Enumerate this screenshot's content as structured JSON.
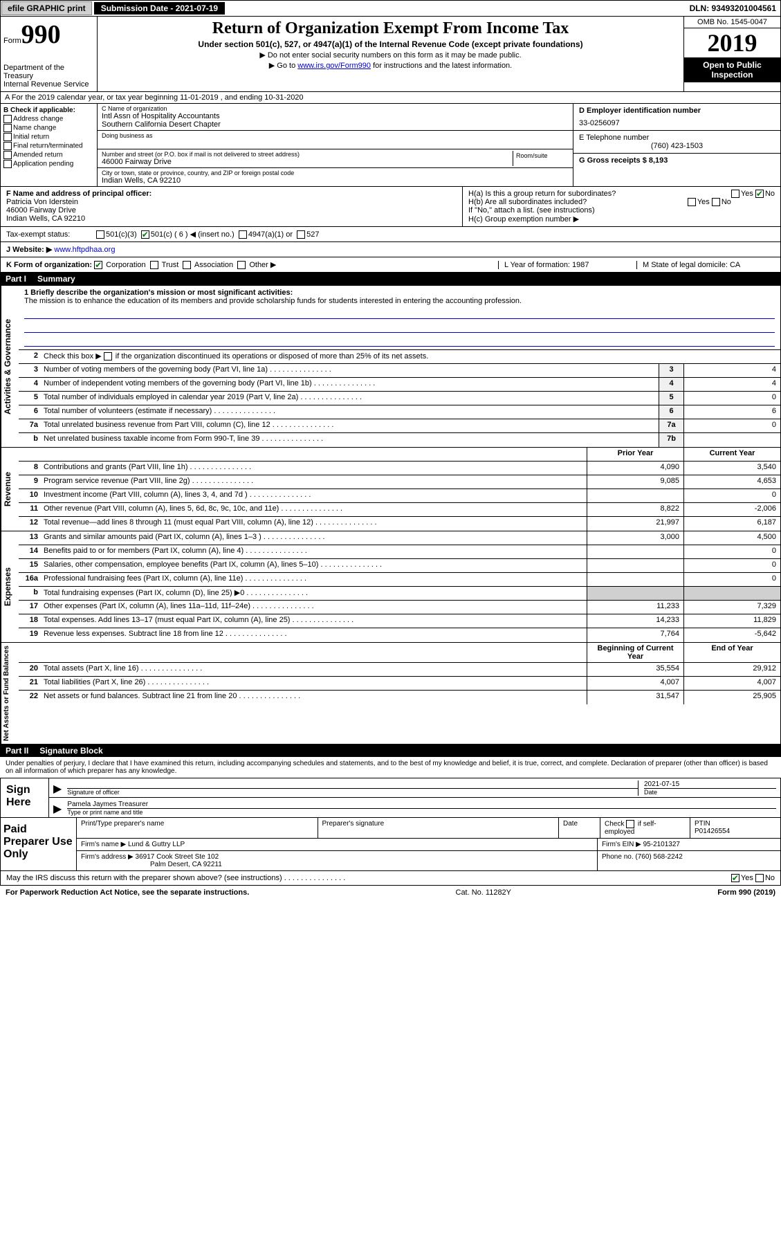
{
  "topbar": {
    "efile": "efile GRAPHIC print",
    "submission": "Submission Date - 2021-07-19",
    "dln": "DLN: 93493201004561"
  },
  "header": {
    "form_label": "Form",
    "form_num": "990",
    "dept": "Department of the Treasury\nInternal Revenue Service",
    "title": "Return of Organization Exempt From Income Tax",
    "sub": "Under section 501(c), 527, or 4947(a)(1) of the Internal Revenue Code (except private foundations)",
    "note1": "Do not enter social security numbers on this form as it may be made public.",
    "note2_pre": "Go to ",
    "note2_link": "www.irs.gov/Form990",
    "note2_post": " for instructions and the latest information.",
    "omb": "OMB No. 1545-0047",
    "year": "2019",
    "inspection": "Open to Public Inspection"
  },
  "sectionA": "A For the 2019 calendar year, or tax year beginning 11-01-2019    , and ending 10-31-2020",
  "colB": {
    "label": "B Check if applicable:",
    "addr_change": "Address change",
    "name_change": "Name change",
    "initial": "Initial return",
    "final": "Final return/terminated",
    "amended": "Amended return",
    "app_pending": "Application pending"
  },
  "colC": {
    "name_lbl": "C Name of organization",
    "name_val": "Intl Assn of Hospitality Accountants\nSouthern California Desert Chapter",
    "dba_lbl": "Doing business as",
    "addr_lbl": "Number and street (or P.O. box if mail is not delivered to street address)",
    "addr_val": "46000 Fairway Drive",
    "room_lbl": "Room/suite",
    "city_lbl": "City or town, state or province, country, and ZIP or foreign postal code",
    "city_val": "Indian Wells, CA  92210"
  },
  "colD": {
    "ein_lbl": "D Employer identification number",
    "ein_val": "33-0256097",
    "tel_lbl": "E Telephone number",
    "tel_val": "(760) 423-1503",
    "gross_lbl": "G Gross receipts $ 8,193"
  },
  "sectionF": {
    "lbl": "F  Name and address of principal officer:",
    "name": "Patricia Von Iderstein",
    "addr1": "46000 Fairway Drive",
    "addr2": "Indian Wells, CA  92210"
  },
  "sectionH": {
    "ha": "H(a)  Is this a group return for subordinates?",
    "hb": "H(b)  Are all subordinates included?",
    "hb_note": "If \"No,\" attach a list. (see instructions)",
    "hc": "H(c)  Group exemption number ▶",
    "yes": "Yes",
    "no": "No"
  },
  "taxExempt": {
    "label": "Tax-exempt status:",
    "c3": "501(c)(3)",
    "c": "501(c) ( 6 ) ◀ (insert no.)",
    "a1": "4947(a)(1) or",
    "s527": "527"
  },
  "website": {
    "label": "J   Website: ▶",
    "val": "www.hftpdhaa.org"
  },
  "korg": {
    "k": "K Form of organization:",
    "corp": "Corporation",
    "trust": "Trust",
    "assoc": "Association",
    "other": "Other ▶",
    "l": "L Year of formation: 1987",
    "m": "M State of legal domicile: CA"
  },
  "part1": {
    "header_num": "Part I",
    "header_txt": "Summary",
    "line1_lbl": "1  Briefly describe the organization's mission or most significant activities:",
    "mission": "The mission is to enhance the education of its members and provide scholarship funds for students interested in entering the accounting profession.",
    "line2": "Check this box ▶",
    "line2b": "if the organization discontinued its operations or disposed of more than 25% of its net assets.",
    "lines": [
      {
        "n": "3",
        "d": "Number of voting members of the governing body (Part VI, line 1a)",
        "b": "3",
        "v": "4"
      },
      {
        "n": "4",
        "d": "Number of independent voting members of the governing body (Part VI, line 1b)",
        "b": "4",
        "v": "4"
      },
      {
        "n": "5",
        "d": "Total number of individuals employed in calendar year 2019 (Part V, line 2a)",
        "b": "5",
        "v": "0"
      },
      {
        "n": "6",
        "d": "Total number of volunteers (estimate if necessary)",
        "b": "6",
        "v": "6"
      },
      {
        "n": "7a",
        "d": "Total unrelated business revenue from Part VIII, column (C), line 12",
        "b": "7a",
        "v": "0"
      },
      {
        "n": "b",
        "d": "Net unrelated business taxable income from Form 990-T, line 39",
        "b": "7b",
        "v": ""
      }
    ],
    "hdr_prior": "Prior Year",
    "hdr_curr": "Current Year",
    "revenue": [
      {
        "n": "8",
        "d": "Contributions and grants (Part VIII, line 1h)",
        "p": "4,090",
        "c": "3,540"
      },
      {
        "n": "9",
        "d": "Program service revenue (Part VIII, line 2g)",
        "p": "9,085",
        "c": "4,653"
      },
      {
        "n": "10",
        "d": "Investment income (Part VIII, column (A), lines 3, 4, and 7d )",
        "p": "",
        "c": "0"
      },
      {
        "n": "11",
        "d": "Other revenue (Part VIII, column (A), lines 5, 6d, 8c, 9c, 10c, and 11e)",
        "p": "8,822",
        "c": "-2,006"
      },
      {
        "n": "12",
        "d": "Total revenue—add lines 8 through 11 (must equal Part VIII, column (A), line 12)",
        "p": "21,997",
        "c": "6,187"
      }
    ],
    "expenses": [
      {
        "n": "13",
        "d": "Grants and similar amounts paid (Part IX, column (A), lines 1–3 )",
        "p": "3,000",
        "c": "4,500"
      },
      {
        "n": "14",
        "d": "Benefits paid to or for members (Part IX, column (A), line 4)",
        "p": "",
        "c": "0"
      },
      {
        "n": "15",
        "d": "Salaries, other compensation, employee benefits (Part IX, column (A), lines 5–10)",
        "p": "",
        "c": "0"
      },
      {
        "n": "16a",
        "d": "Professional fundraising fees (Part IX, column (A), line 11e)",
        "p": "",
        "c": "0"
      },
      {
        "n": "b",
        "d": "Total fundraising expenses (Part IX, column (D), line 25) ▶0",
        "p": "gray",
        "c": "gray"
      },
      {
        "n": "17",
        "d": "Other expenses (Part IX, column (A), lines 11a–11d, 11f–24e)",
        "p": "11,233",
        "c": "7,329"
      },
      {
        "n": "18",
        "d": "Total expenses. Add lines 13–17 (must equal Part IX, column (A), line 25)",
        "p": "14,233",
        "c": "11,829"
      },
      {
        "n": "19",
        "d": "Revenue less expenses. Subtract line 18 from line 12",
        "p": "7,764",
        "c": "-5,642"
      }
    ],
    "hdr_beg": "Beginning of Current Year",
    "hdr_end": "End of Year",
    "netassets": [
      {
        "n": "20",
        "d": "Total assets (Part X, line 16)",
        "p": "35,554",
        "c": "29,912"
      },
      {
        "n": "21",
        "d": "Total liabilities (Part X, line 26)",
        "p": "4,007",
        "c": "4,007"
      },
      {
        "n": "22",
        "d": "Net assets or fund balances. Subtract line 21 from line 20",
        "p": "31,547",
        "c": "25,905"
      }
    ]
  },
  "part2": {
    "header_num": "Part II",
    "header_txt": "Signature Block",
    "decl": "Under penalties of perjury, I declare that I have examined this return, including accompanying schedules and statements, and to the best of my knowledge and belief, it is true, correct, and complete. Declaration of preparer (other than officer) is based on all information of which preparer has any knowledge."
  },
  "sign": {
    "label": "Sign Here",
    "sig_lbl": "Signature of officer",
    "date_lbl": "Date",
    "date_val": "2021-07-15",
    "name": "Pamela Jaymes  Treasurer",
    "name_lbl": "Type or print name and title"
  },
  "prep": {
    "label": "Paid Preparer Use Only",
    "pname_lbl": "Print/Type preparer's name",
    "psig_lbl": "Preparer's signature",
    "pdate_lbl": "Date",
    "check_lbl": "Check",
    "self_emp": "if self-employed",
    "ptin_lbl": "PTIN",
    "ptin_val": "P01426554",
    "firm_name_lbl": "Firm's name    ▶",
    "firm_name": "Lund & Guttry LLP",
    "firm_ein_lbl": "Firm's EIN ▶",
    "firm_ein": "95-2101327",
    "firm_addr_lbl": "Firm's address ▶",
    "firm_addr1": "36917 Cook Street Ste 102",
    "firm_addr2": "Palm Desert, CA  92211",
    "phone_lbl": "Phone no.",
    "phone": "(760) 568-2242"
  },
  "discuss": "May the IRS discuss this return with the preparer shown above? (see instructions)",
  "footer": {
    "pra": "For Paperwork Reduction Act Notice, see the separate instructions.",
    "cat": "Cat. No. 11282Y",
    "form": "Form 990 (2019)"
  },
  "side_labels": {
    "gov": "Activities & Governance",
    "rev": "Revenue",
    "exp": "Expenses",
    "net": "Net Assets or Fund Balances"
  }
}
